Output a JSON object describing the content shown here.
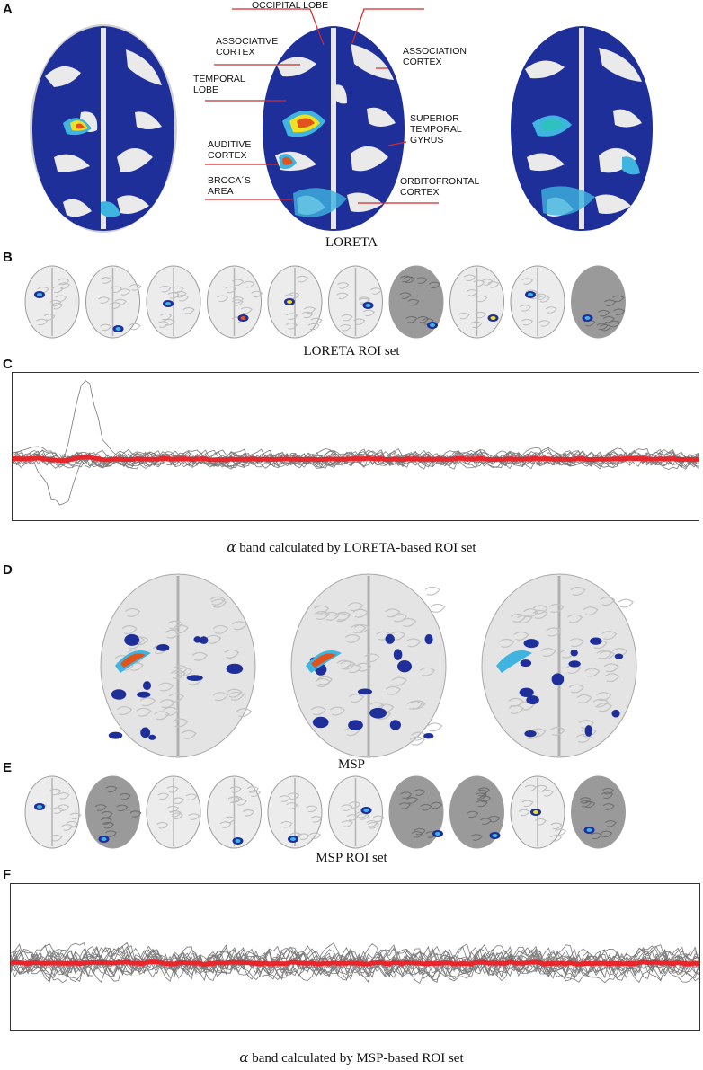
{
  "panels": {
    "A": {
      "letter": "A",
      "caption": "LORETA",
      "labels": {
        "occipital": "OCCIPITAL LOBE",
        "associative": "ASSOCIATIVE\nCORTEX",
        "association": "ASSOCIATION\nCORTEX",
        "temporal_lobe": "TEMPORAL\nLOBE",
        "superior_temporal": "SUPERIOR\nTEMPORAL\nGYRUS",
        "auditive": "AUDITIVE\nCORTEX",
        "brocas": "BROCA´S\nAREA",
        "orbitofrontal": "ORBITOFRONTAL\nCORTEX"
      }
    },
    "B": {
      "letter": "B",
      "caption": "LORETA ROI set"
    },
    "C": {
      "letter": "C",
      "caption_symbol": "α",
      "caption": "band calculated by LORETA-based ROI set"
    },
    "D": {
      "letter": "D",
      "caption": "MSP"
    },
    "E": {
      "letter": "E",
      "caption": "MSP ROI set"
    },
    "F": {
      "letter": "F",
      "caption_symbol": "α",
      "caption": "band calculated by MSP-based ROI set"
    }
  },
  "colors": {
    "loreta_surface": "#1f2f9a",
    "cortex_gray": "#d9d9d9",
    "mean_trace": "#e8252b",
    "trace_gray": "#7a7a7a",
    "annotation_line": "#d6262c",
    "hot": "#f0e020",
    "warm": "#e2521c",
    "cyan": "#3fb4e0"
  }
}
